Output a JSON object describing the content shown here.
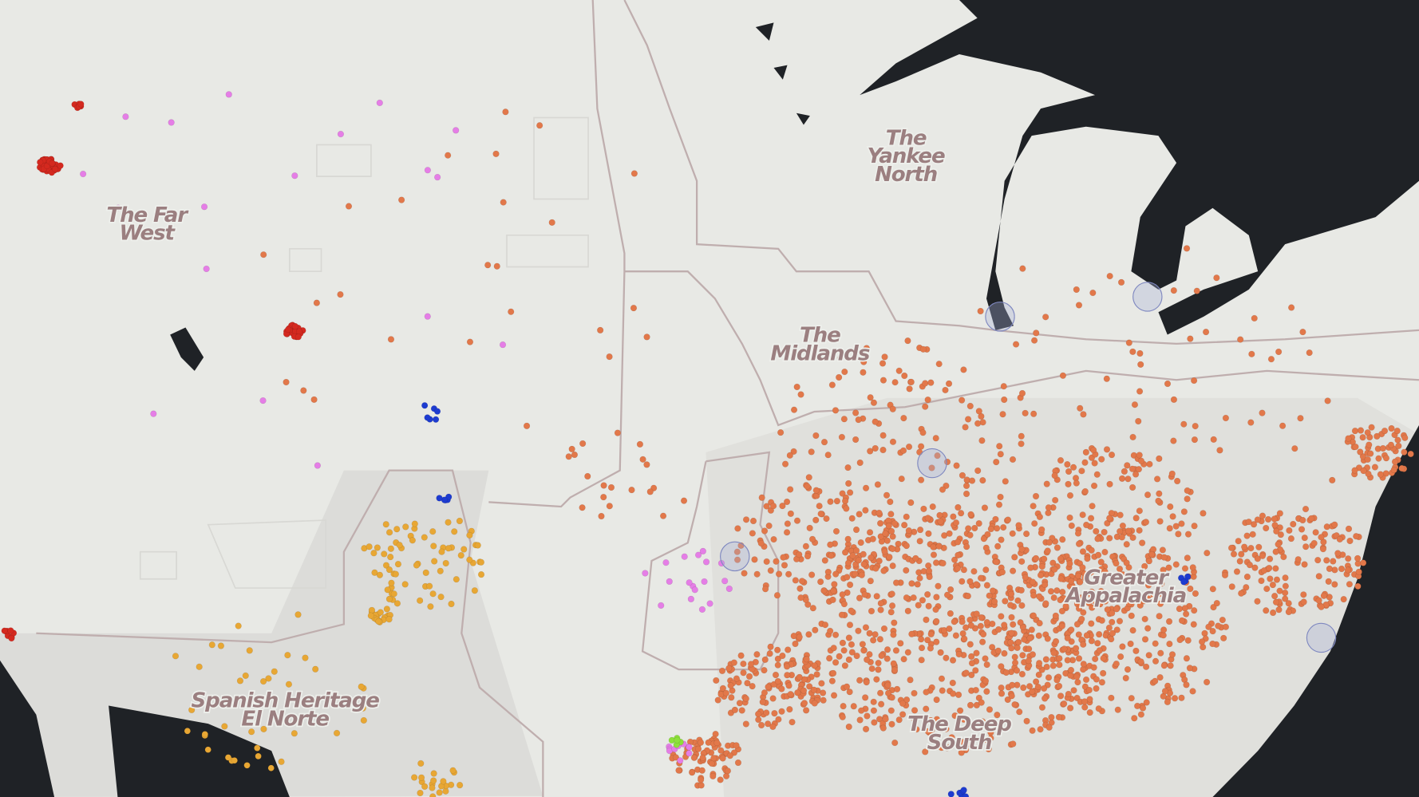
{
  "regions": [
    {
      "lines": [
        "The Far",
        "West"
      ]
    },
    {
      "lines": [
        "The",
        "Yankee",
        "North"
      ]
    },
    {
      "lines": [
        "The",
        "Midlands"
      ]
    },
    {
      "lines": [
        "Greater",
        "Appalachia"
      ]
    },
    {
      "lines": [
        "Spanish Heritage",
        "El Norte"
      ]
    },
    {
      "lines": [
        "The Deep",
        "South"
      ]
    }
  ]
}
